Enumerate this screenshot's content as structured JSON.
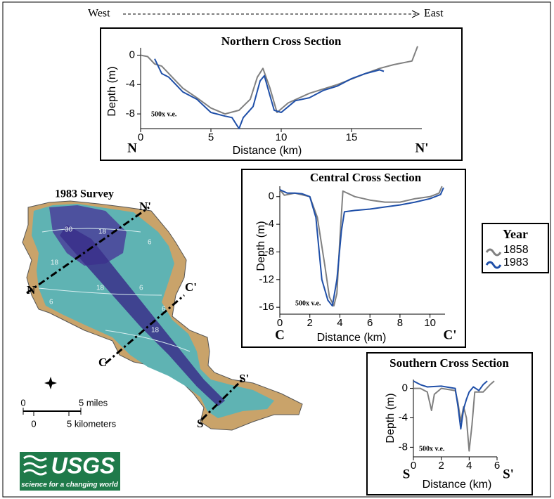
{
  "header": {
    "west": "West",
    "east": "East"
  },
  "chart_data": [
    {
      "type": "line",
      "title": "Northern Cross Section",
      "x_label": "Distance (km)",
      "y_label": "Depth (m)",
      "annotation": "500x v.e.",
      "endpoints": [
        "N",
        "N'"
      ],
      "xlim": [
        0,
        20
      ],
      "ylim": [
        -10,
        1
      ],
      "xticks": [
        0,
        5,
        10,
        15
      ],
      "yticks": [
        0,
        -4,
        -8
      ],
      "series": [
        {
          "color": "#808080",
          "x": [
            0,
            0.5,
            1,
            1.5,
            2,
            3,
            4,
            5,
            6,
            7,
            7.8,
            8.3,
            8.7,
            9.2,
            9.7,
            10.5,
            12,
            14,
            16,
            17,
            18,
            19.3,
            19.7
          ],
          "values": [
            0,
            -0.2,
            -1.2,
            -1.5,
            -2.5,
            -4.5,
            -5.8,
            -7.2,
            -8,
            -7.5,
            -6,
            -3,
            -1.8,
            -4.5,
            -7.8,
            -6.5,
            -5.2,
            -4,
            -2.5,
            -1.8,
            -1.3,
            -0.8,
            1.2
          ]
        },
        {
          "color": "#1f4fa8",
          "x": [
            1,
            1.5,
            2,
            3,
            4,
            5,
            6,
            6.5,
            7,
            7.3,
            8,
            8.5,
            8.8,
            9.2,
            9.5,
            10,
            11,
            12,
            13,
            14,
            15,
            16,
            17,
            17.3
          ],
          "values": [
            -0.5,
            -2.5,
            -3,
            -5,
            -6,
            -7.8,
            -8.3,
            -8.5,
            -10,
            -8.5,
            -7,
            -3.5,
            -2.8,
            -5.5,
            -7.5,
            -7.8,
            -6.2,
            -5.8,
            -4.8,
            -4.2,
            -3.2,
            -2.5,
            -2,
            -2.2
          ]
        }
      ]
    },
    {
      "type": "line",
      "title": "Central Cross Section",
      "x_label": "Distance (km)",
      "y_label": "Depth (m)",
      "annotation": "500x v.e.",
      "endpoints": [
        "C",
        "C'"
      ],
      "xlim": [
        0,
        11
      ],
      "ylim": [
        -17,
        1.5
      ],
      "xticks": [
        0,
        2,
        4,
        6,
        8,
        10
      ],
      "yticks": [
        0,
        -4,
        -8,
        -12,
        -16
      ],
      "series": [
        {
          "color": "#808080",
          "x": [
            0,
            0.3,
            1,
            2,
            2.5,
            3,
            3.3,
            3.6,
            3.8,
            4,
            4.2,
            5,
            6,
            7,
            8,
            9,
            10,
            10.6,
            10.8
          ],
          "values": [
            1,
            0.2,
            0.5,
            0,
            -3,
            -10,
            -14.5,
            -15.8,
            -14,
            -6,
            0.8,
            0,
            -0.5,
            -0.8,
            -0.8,
            -0.3,
            0,
            0.5,
            1.5
          ]
        },
        {
          "color": "#1f4fa8",
          "x": [
            0,
            0.5,
            1,
            1.5,
            2,
            2.4,
            2.8,
            3.2,
            3.5,
            3.8,
            4.1,
            4.3,
            5,
            6,
            7,
            8,
            9,
            10,
            10.7,
            10.9
          ],
          "values": [
            1,
            0.5,
            0.5,
            0.4,
            0,
            -3,
            -12,
            -15,
            -15.8,
            -12,
            -5,
            -2.2,
            -2,
            -1.8,
            -1.5,
            -1.2,
            -0.8,
            -0.3,
            0.3,
            1.3
          ]
        }
      ]
    },
    {
      "type": "line",
      "title": "Southern Cross Section",
      "x_label": "Distance (km)",
      "y_label": "Depth (m)",
      "annotation": "500x v.e.",
      "endpoints": [
        "S",
        "S'"
      ],
      "xlim": [
        0,
        6
      ],
      "ylim": [
        -9.3,
        1.2
      ],
      "xticks": [
        0,
        2,
        4,
        6
      ],
      "yticks": [
        0,
        -4,
        -8
      ],
      "series": [
        {
          "color": "#808080",
          "x": [
            0,
            0.5,
            1,
            1.3,
            1.5,
            2,
            3,
            3.2,
            3.4,
            3.6,
            3.8,
            4,
            4.2,
            4.4,
            5,
            5.5,
            5.8
          ],
          "values": [
            0,
            0,
            -0.5,
            -3,
            -0.8,
            0,
            -0.3,
            -2,
            -4.5,
            -2.5,
            -4,
            -8.5,
            -5,
            -0.5,
            -0.5,
            0.5,
            1
          ]
        },
        {
          "color": "#1f4fa8",
          "x": [
            0,
            0.5,
            1,
            2,
            3,
            3.2,
            3.4,
            3.6,
            3.8,
            4,
            4.3,
            4.7,
            5,
            5.3
          ],
          "values": [
            1,
            0.5,
            0.2,
            0.3,
            0,
            -2.5,
            -5.5,
            -2.8,
            -1.5,
            -0.5,
            0.2,
            -0.3,
            0.5,
            1
          ]
        }
      ]
    }
  ],
  "legend": {
    "title": "Year",
    "entries": [
      {
        "name": "1858",
        "color": "#808080"
      },
      {
        "name": "1983",
        "color": "#1f4fa8"
      }
    ]
  },
  "map": {
    "title": "1983 Survey",
    "transects": [
      "N",
      "N'",
      "C",
      "C'",
      "S",
      "S'"
    ],
    "contours": [
      "30",
      "18",
      "18",
      "6",
      "18",
      "6",
      "6",
      "18",
      "6"
    ],
    "scale": {
      "miles_zero": "0",
      "miles": "5 miles",
      "km_zero": "0",
      "km": "5 kilometers"
    }
  },
  "logo": {
    "name": "USGS",
    "tagline": "science for a changing world"
  }
}
